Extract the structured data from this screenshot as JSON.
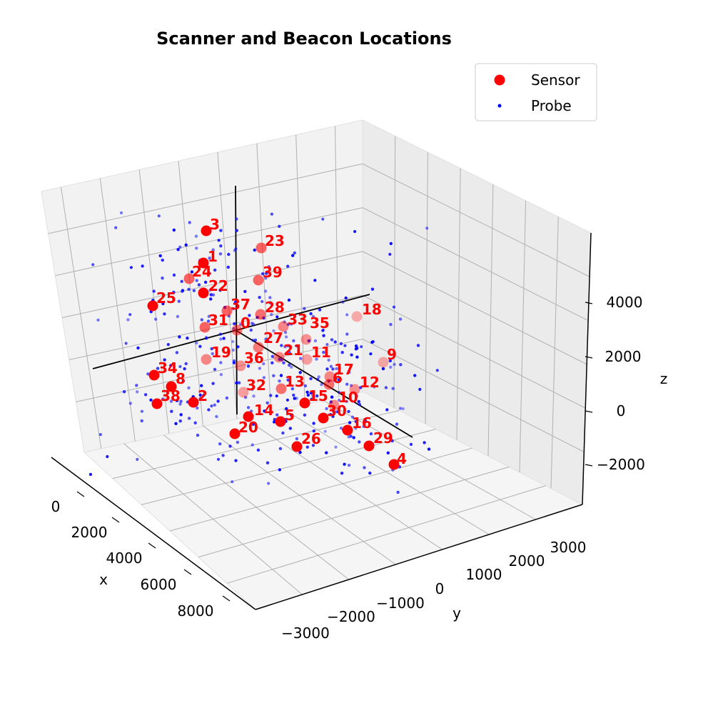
{
  "chart_data": {
    "type": "scatter3d",
    "title": "Scanner and Beacon Locations",
    "xlabel": "x",
    "ylabel": "y",
    "zlabel": "z",
    "x_ticks": [
      "0",
      "2000",
      "4000",
      "6000",
      "8000"
    ],
    "y_ticks": [
      "−3000",
      "−2000",
      "−1000",
      "0",
      "1000",
      "2000",
      "3000"
    ],
    "z_ticks": [
      "−2000",
      "0",
      "2000",
      "4000"
    ],
    "legend": {
      "placement": "top-right",
      "entries": [
        {
          "label": "Sensor",
          "color": "#ff0000"
        },
        {
          "label": "Probe",
          "color": "#0000ff"
        }
      ]
    },
    "colors": {
      "sensor": "#ff0000",
      "probe": "#0000ff",
      "label": "#ff0000",
      "pane": "#f2f2f2",
      "grid": "#b0b0b0"
    },
    "sensors": [
      {
        "id": "0"
      },
      {
        "id": "1"
      },
      {
        "id": "2"
      },
      {
        "id": "3"
      },
      {
        "id": "4"
      },
      {
        "id": "5"
      },
      {
        "id": "6"
      },
      {
        "id": "8"
      },
      {
        "id": "9"
      },
      {
        "id": "10"
      },
      {
        "id": "11"
      },
      {
        "id": "12"
      },
      {
        "id": "13"
      },
      {
        "id": "14"
      },
      {
        "id": "15"
      },
      {
        "id": "16"
      },
      {
        "id": "17"
      },
      {
        "id": "18"
      },
      {
        "id": "19"
      },
      {
        "id": "20"
      },
      {
        "id": "21"
      },
      {
        "id": "22"
      },
      {
        "id": "23"
      },
      {
        "id": "24"
      },
      {
        "id": "25"
      },
      {
        "id": "26"
      },
      {
        "id": "27"
      },
      {
        "id": "28"
      },
      {
        "id": "29"
      },
      {
        "id": "30"
      },
      {
        "id": "31"
      },
      {
        "id": "32"
      },
      {
        "id": "33"
      },
      {
        "id": "34"
      },
      {
        "id": "35"
      },
      {
        "id": "36"
      },
      {
        "id": "37"
      },
      {
        "id": "38"
      },
      {
        "id": "39"
      }
    ]
  }
}
